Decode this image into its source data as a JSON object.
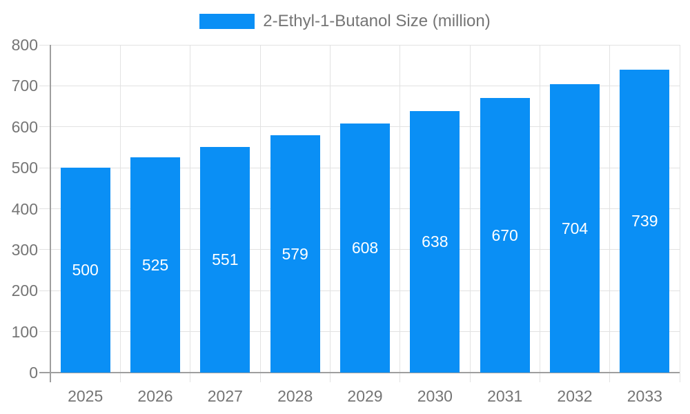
{
  "chart_data": {
    "type": "bar",
    "title": "",
    "xlabel": "",
    "ylabel": "",
    "legend": {
      "position": "top",
      "label": "2-Ethyl-1-Butanol Size (million)"
    },
    "categories": [
      "2025",
      "2026",
      "2027",
      "2028",
      "2029",
      "2030",
      "2031",
      "2032",
      "2033"
    ],
    "series": [
      {
        "name": "2-Ethyl-1-Butanol Size (million)",
        "values": [
          500,
          525,
          551,
          579,
          608,
          638,
          670,
          704,
          739
        ]
      }
    ],
    "bar_value_labels": [
      "500",
      "525",
      "551",
      "579",
      "608",
      "638",
      "670",
      "704",
      "739"
    ],
    "ylim": [
      0,
      800
    ],
    "ytick_step": 100,
    "ytick_labels": [
      "0",
      "100",
      "200",
      "300",
      "400",
      "500",
      "600",
      "700",
      "800"
    ],
    "grid": true,
    "colors": {
      "bar": "#0a8ff5",
      "bar_label": "#ffffff",
      "axis": "#9e9e9e",
      "grid": "#e2e2e2",
      "tick_text": "#757575",
      "legend_text": "#757575"
    }
  }
}
